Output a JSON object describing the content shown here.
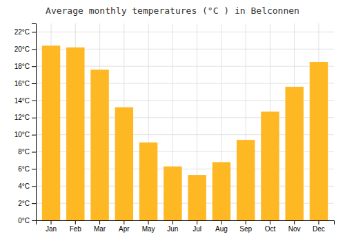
{
  "chart_data": {
    "type": "bar",
    "title": "Average monthly temperatures (°C ) in Belconnen",
    "categories": [
      "Jan",
      "Feb",
      "Mar",
      "Apr",
      "May",
      "Jun",
      "Jul",
      "Aug",
      "Sep",
      "Oct",
      "Nov",
      "Dec"
    ],
    "values": [
      20.4,
      20.2,
      17.6,
      13.2,
      9.1,
      6.3,
      5.3,
      6.8,
      9.4,
      12.7,
      15.6,
      18.5
    ],
    "color": "#FDB823",
    "ylim": [
      0,
      23
    ],
    "yticks": [
      {
        "value": 0,
        "label": "0°C"
      },
      {
        "value": 2,
        "label": "2°C"
      },
      {
        "value": 4,
        "label": "4°C"
      },
      {
        "value": 6,
        "label": "6°C"
      },
      {
        "value": 8,
        "label": "8°C"
      },
      {
        "value": 10,
        "label": "10°C"
      },
      {
        "value": 12,
        "label": "12°C"
      },
      {
        "value": 14,
        "label": "14°C"
      },
      {
        "value": 16,
        "label": "16°C"
      },
      {
        "value": 18,
        "label": "18°C"
      },
      {
        "value": 20,
        "label": "20°C"
      },
      {
        "value": 22,
        "label": "22°C"
      }
    ],
    "grid": true
  }
}
